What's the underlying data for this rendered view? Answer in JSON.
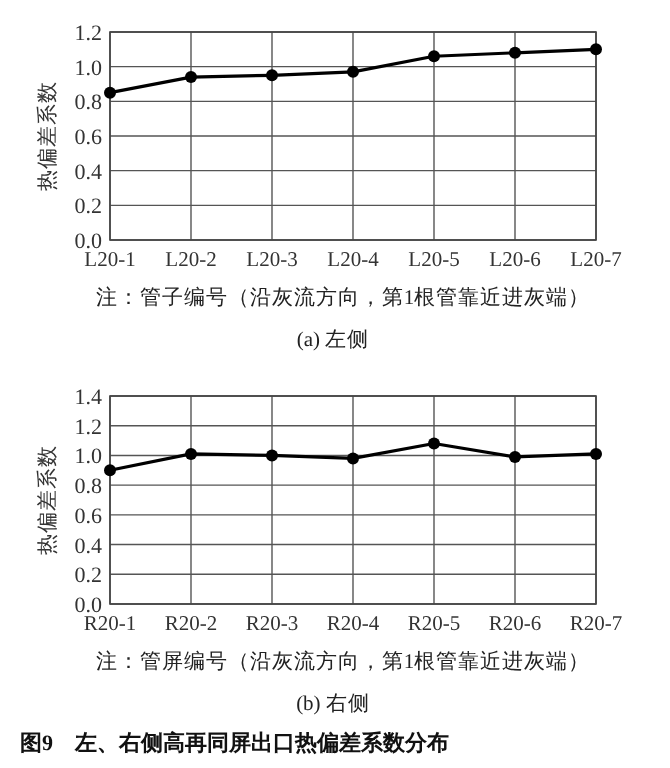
{
  "chart_data": [
    {
      "type": "line",
      "categories": [
        "L20-1",
        "L20-2",
        "L20-3",
        "L20-4",
        "L20-5",
        "L20-6",
        "L20-7"
      ],
      "series": [
        {
          "color": "#000000",
          "values": [
            0.85,
            0.94,
            0.95,
            0.97,
            1.06,
            1.08,
            1.1
          ]
        }
      ],
      "ylim": [
        0,
        1.2
      ],
      "yticks": [
        {
          "value": 0,
          "label": "0.0"
        },
        {
          "value": 0.2,
          "label": "0.2"
        },
        {
          "value": 0.4,
          "label": "0.4"
        },
        {
          "value": 0.6,
          "label": "0.6"
        },
        {
          "value": 0.8,
          "label": "0.8"
        },
        {
          "value": 1.0,
          "label": "1.0"
        },
        {
          "value": 1.2,
          "label": "1.2"
        }
      ],
      "ylabel": "热偏差系数",
      "xlabel": "注：管子编号（沿灰流方向，第1根管靠近进灰端）",
      "annotations": [
        "(a) 左侧"
      ],
      "grid": true,
      "marker": "circle",
      "line_style": "solid"
    },
    {
      "type": "line",
      "categories": [
        "R20-1",
        "R20-2",
        "R20-3",
        "R20-4",
        "R20-5",
        "R20-6",
        "R20-7"
      ],
      "series": [
        {
          "color": "#000000",
          "values": [
            0.9,
            1.01,
            1.0,
            0.98,
            1.08,
            0.99,
            1.01
          ]
        }
      ],
      "ylim": [
        0,
        1.4
      ],
      "yticks": [
        {
          "value": 0,
          "label": "0.0"
        },
        {
          "value": 0.2,
          "label": "0.2"
        },
        {
          "value": 0.4,
          "label": "0.4"
        },
        {
          "value": 0.6,
          "label": "0.6"
        },
        {
          "value": 0.8,
          "label": "0.8"
        },
        {
          "value": 1.0,
          "label": "1.0"
        },
        {
          "value": 1.2,
          "label": "1.2"
        },
        {
          "value": 1.4,
          "label": "1.4"
        }
      ],
      "ylabel": "热偏差系数",
      "xlabel": "注：管屏编号（沿灰流方向，第1根管靠近进灰端）",
      "annotations": [
        "(b) 右侧",
        "图9　左、右侧高再同屏出口热偏差系数分布"
      ],
      "grid": true,
      "marker": "circle",
      "line_style": "solid"
    }
  ]
}
